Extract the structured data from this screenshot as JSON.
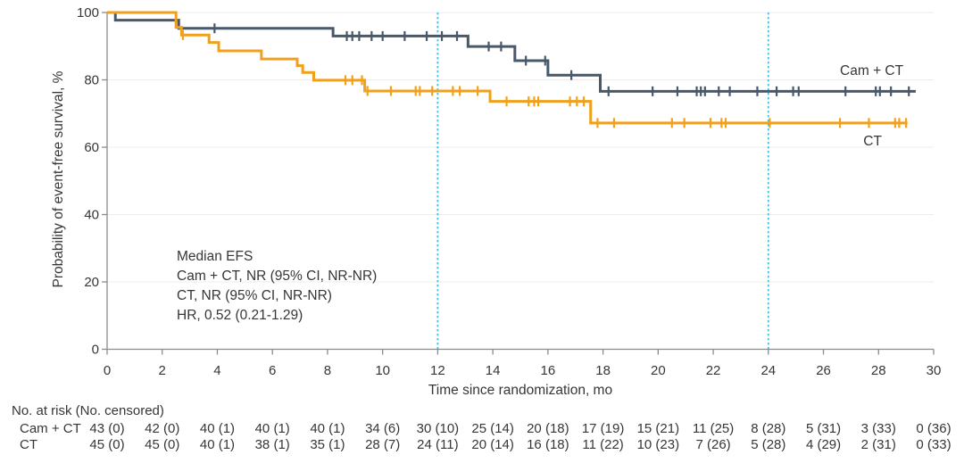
{
  "figure": {
    "background": "#ffffff",
    "text_color": "#363636"
  },
  "chart_data": {
    "type": "line",
    "subtype": "kaplan-meier-step",
    "title": "",
    "xlabel": "Time since randomization, mo",
    "ylabel": "Probability of event-free survival, %",
    "xlim": [
      0,
      30
    ],
    "ylim": [
      0,
      100
    ],
    "x_ticks": [
      0,
      2,
      4,
      6,
      8,
      10,
      12,
      14,
      16,
      18,
      20,
      22,
      24,
      26,
      28,
      30
    ],
    "y_ticks": [
      0,
      20,
      40,
      60,
      80,
      100
    ],
    "grid": "horizontal",
    "grid_color": "#ececec",
    "axis_color": "#8b8b8b",
    "reference_lines_x": [
      12,
      24
    ],
    "reference_line_color": "#41c0e8",
    "legend_position": "end-of-line-labels",
    "series": [
      {
        "name": "Cam + CT",
        "color": "#47596b",
        "label_pos": [
          26.6,
          81.5
        ],
        "steps": [
          [
            0,
            100
          ],
          [
            0.3,
            97.7
          ],
          [
            2.6,
            95.3
          ],
          [
            8.2,
            93.0
          ],
          [
            13.1,
            89.9
          ],
          [
            14.8,
            85.7
          ],
          [
            16.0,
            81.4
          ],
          [
            17.9,
            76.6
          ]
        ],
        "end": 29.35,
        "censors": [
          [
            3.9,
            95.3
          ],
          [
            8.7,
            93.0
          ],
          [
            8.9,
            93.0
          ],
          [
            9.15,
            93.0
          ],
          [
            9.6,
            93.0
          ],
          [
            10.0,
            93.0
          ],
          [
            10.8,
            93.0
          ],
          [
            11.6,
            93.0
          ],
          [
            12.15,
            93.0
          ],
          [
            12.7,
            93.0
          ],
          [
            13.85,
            89.9
          ],
          [
            14.3,
            89.9
          ],
          [
            15.2,
            85.7
          ],
          [
            15.9,
            85.7
          ],
          [
            16.85,
            81.4
          ],
          [
            18.2,
            76.6
          ],
          [
            19.8,
            76.6
          ],
          [
            20.7,
            76.6
          ],
          [
            21.4,
            76.6
          ],
          [
            21.55,
            76.6
          ],
          [
            21.7,
            76.6
          ],
          [
            22.2,
            76.6
          ],
          [
            22.6,
            76.6
          ],
          [
            23.6,
            76.6
          ],
          [
            24.3,
            76.6
          ],
          [
            24.9,
            76.6
          ],
          [
            25.1,
            76.6
          ],
          [
            26.8,
            76.6
          ],
          [
            27.9,
            76.6
          ],
          [
            28.05,
            76.6
          ],
          [
            28.45,
            76.6
          ],
          [
            29.1,
            76.6
          ]
        ]
      },
      {
        "name": "CT",
        "color": "#f0a01d",
        "label_pos": [
          27.45,
          60.5
        ],
        "steps": [
          [
            0,
            100
          ],
          [
            2.5,
            95.6
          ],
          [
            2.7,
            93.3
          ],
          [
            3.7,
            91.1
          ],
          [
            4.05,
            88.6
          ],
          [
            5.6,
            86.2
          ],
          [
            6.9,
            84.2
          ],
          [
            7.1,
            82.2
          ],
          [
            7.5,
            79.9
          ],
          [
            9.35,
            76.7
          ],
          [
            13.9,
            73.6
          ],
          [
            17.55,
            67.2
          ]
        ],
        "end": 29.05,
        "censors": [
          [
            2.75,
            93.3
          ],
          [
            8.65,
            79.9
          ],
          [
            8.9,
            79.9
          ],
          [
            9.25,
            79.9
          ],
          [
            9.45,
            76.7
          ],
          [
            10.3,
            76.7
          ],
          [
            11.2,
            76.7
          ],
          [
            11.35,
            76.7
          ],
          [
            11.8,
            76.7
          ],
          [
            12.55,
            76.7
          ],
          [
            12.8,
            76.7
          ],
          [
            13.45,
            76.7
          ],
          [
            14.5,
            73.6
          ],
          [
            15.3,
            73.6
          ],
          [
            15.5,
            73.6
          ],
          [
            15.65,
            73.6
          ],
          [
            16.8,
            73.6
          ],
          [
            17.05,
            73.6
          ],
          [
            17.3,
            73.6
          ],
          [
            17.8,
            67.2
          ],
          [
            18.4,
            67.2
          ],
          [
            20.5,
            67.2
          ],
          [
            20.95,
            67.2
          ],
          [
            21.9,
            67.2
          ],
          [
            22.3,
            67.2
          ],
          [
            22.45,
            67.2
          ],
          [
            24.05,
            67.2
          ],
          [
            26.6,
            67.2
          ],
          [
            27.65,
            67.2
          ],
          [
            28.6,
            67.2
          ],
          [
            28.75,
            67.2
          ],
          [
            29.0,
            67.2
          ]
        ]
      }
    ],
    "annotation": {
      "lines": [
        "Median EFS",
        "Cam + CT, NR (95% CI, NR-NR)",
        "CT, NR (95% CI, NR-NR)",
        "HR, 0.52 (0.21-1.29)"
      ]
    },
    "risk_table": {
      "header": "No. at risk (No. censored)",
      "times": [
        0,
        2,
        4,
        6,
        8,
        10,
        12,
        14,
        16,
        18,
        20,
        22,
        24,
        26,
        28,
        30
      ],
      "rows": [
        {
          "label": "Cam + CT",
          "values": [
            "43 (0)",
            "42 (0)",
            "40 (1)",
            "40 (1)",
            "40 (1)",
            "34 (6)",
            "30 (10)",
            "25 (14)",
            "20 (18)",
            "17 (19)",
            "15 (21)",
            "11 (25)",
            "8 (28)",
            "5 (31)",
            "3 (33)",
            "0 (36)"
          ]
        },
        {
          "label": "CT",
          "values": [
            "45 (0)",
            "45 (0)",
            "40 (1)",
            "38 (1)",
            "35 (1)",
            "28 (7)",
            "24 (11)",
            "20 (14)",
            "16 (18)",
            "11 (22)",
            "10 (23)",
            "7 (26)",
            "5 (28)",
            "4 (29)",
            "2 (31)",
            "0 (33)"
          ]
        }
      ]
    }
  }
}
